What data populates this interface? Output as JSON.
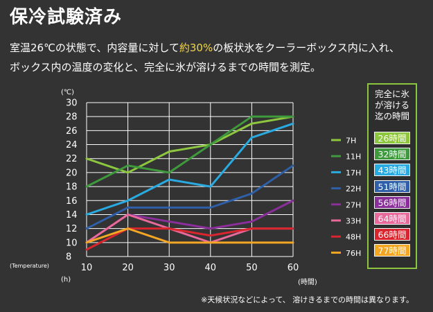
{
  "header": {
    "title": "保冷試験済み",
    "desc_line1_a": "室温26℃の状態で、内容量に対して",
    "desc_line1_hl": "約30%",
    "desc_line1_b": "の板状氷をクーラーボックス内に入れ、",
    "desc_line2": "ボックス内の温度の変化と、完全に氷が溶けるまでの時間を測定。"
  },
  "legend_box": {
    "heading_lines": [
      "完全に氷",
      "が溶ける",
      "迄の時間"
    ],
    "badges": [
      {
        "label": "26時間",
        "color": "#8dc63f"
      },
      {
        "label": "32時間",
        "color": "#3f9a3d"
      },
      {
        "label": "43時間",
        "color": "#29abe2"
      },
      {
        "label": "51時間",
        "color": "#2e5fa8"
      },
      {
        "label": "56時間",
        "color": "#8a2f9a"
      },
      {
        "label": "64時間",
        "color": "#e86a9a"
      },
      {
        "label": "66時間",
        "color": "#d9262e"
      },
      {
        "label": "77時間",
        "color": "#f5a623"
      }
    ]
  },
  "footnote": "※天候状況などによって、 溶けきるまでの時間は異なります。",
  "chart_data": {
    "type": "line",
    "x": [
      10,
      20,
      30,
      40,
      50,
      60
    ],
    "xlim": [
      10,
      60
    ],
    "ylim": [
      8,
      30
    ],
    "y_ticks": [
      8,
      10,
      12,
      14,
      16,
      18,
      20,
      22,
      24,
      26,
      28,
      30
    ],
    "x_ticks": [
      10,
      20,
      30,
      40,
      50,
      60
    ],
    "y_unit_label": "(℃)",
    "y_axis_label": "(Temperature)",
    "x_unit_label_left": "(h)",
    "x_unit_label_right": "(時間)",
    "grid": true,
    "legend_position": "right",
    "series": [
      {
        "name": "7H",
        "color": "#8dc63f",
        "values": [
          22,
          20,
          23,
          24,
          27,
          28
        ]
      },
      {
        "name": "11H",
        "color": "#3f9a3d",
        "values": [
          18,
          21,
          20,
          24,
          28,
          28
        ]
      },
      {
        "name": "17H",
        "color": "#29abe2",
        "values": [
          14,
          16,
          19,
          18,
          25,
          27
        ]
      },
      {
        "name": "22H",
        "color": "#2e5fa8",
        "values": [
          12,
          15,
          15,
          15,
          17,
          21
        ]
      },
      {
        "name": "27H",
        "color": "#8a2f9a",
        "values": [
          10,
          14,
          13,
          12,
          13,
          16
        ]
      },
      {
        "name": "33H",
        "color": "#e86a9a",
        "values": [
          10,
          14,
          12,
          10,
          12,
          12
        ]
      },
      {
        "name": "48H",
        "color": "#d9262e",
        "values": [
          9,
          12,
          12,
          11,
          12,
          12
        ]
      },
      {
        "name": "76H",
        "color": "#f5a623",
        "values": [
          10,
          12,
          10,
          10,
          10,
          10
        ]
      }
    ]
  }
}
